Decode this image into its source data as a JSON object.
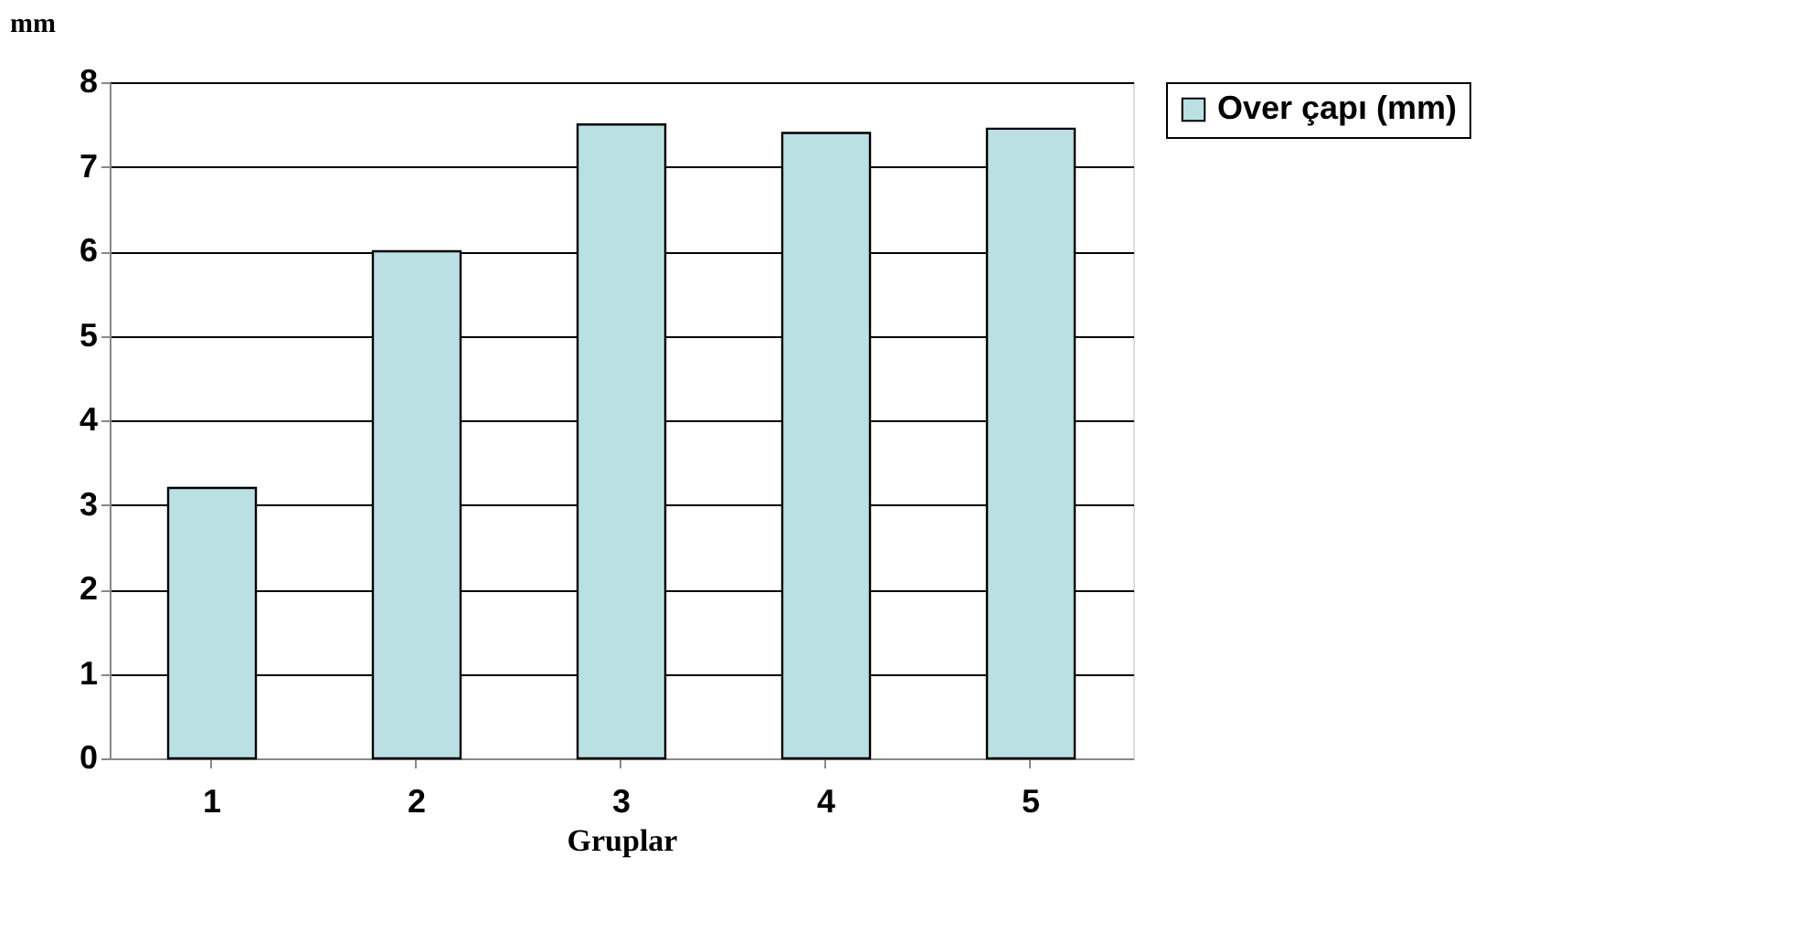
{
  "chart_data": {
    "type": "bar",
    "ylabel": "mm",
    "xlabel": "Gruplar",
    "categories": [
      "1",
      "2",
      "3",
      "4",
      "5"
    ],
    "series": [
      {
        "name": "Over çapı (mm)",
        "color": "#bbe0e3",
        "values": [
          3.2,
          6.0,
          7.5,
          7.4,
          7.45
        ]
      }
    ],
    "ylim": [
      0,
      8
    ],
    "yticks": [
      0,
      1,
      2,
      3,
      4,
      5,
      6,
      7,
      8
    ],
    "grid": "y",
    "legend": "right"
  }
}
